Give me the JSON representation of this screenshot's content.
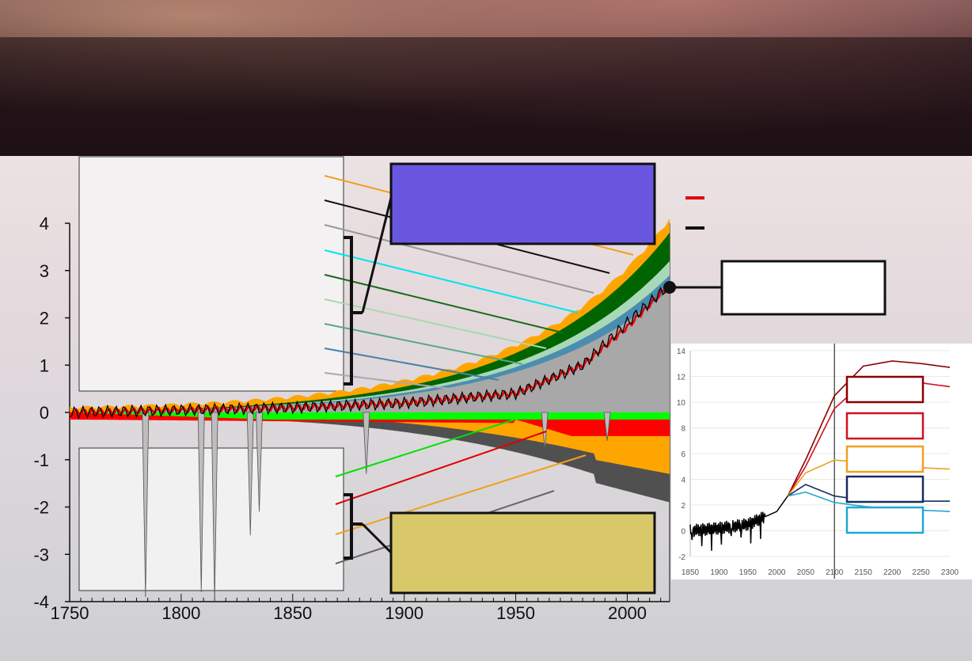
{
  "chart_data": [
    {
      "type": "area",
      "title": "",
      "xlabel": "",
      "ylabel": "",
      "xlim": [
        1750,
        2019
      ],
      "ylim": [
        -4,
        4
      ],
      "x_ticks": [
        "1750",
        "1800",
        "1850",
        "1900",
        "1950",
        "2000"
      ],
      "y_ticks": [
        "4",
        "3",
        "2",
        "1",
        "0",
        "-1",
        "-2",
        "-3",
        "-4"
      ],
      "positive_layers": [
        {
          "color": "#ffa500",
          "values_2019": 4.0
        },
        {
          "color": "#006400",
          "values_2019": 3.8
        },
        {
          "color": "#a9d8b8",
          "values_2019": 3.2
        },
        {
          "color": "#4a8db0",
          "values_2019": 2.9
        },
        {
          "color": "#a8a8a8",
          "values_2019": 2.6
        }
      ],
      "negative_layers": [
        {
          "color": "#00ff00",
          "values_2019": -0.15
        },
        {
          "color": "#ff0000",
          "values_2019": -0.5
        },
        {
          "color": "#ffa500",
          "values_2019": -1.3
        },
        {
          "color": "#505050",
          "values_2019": -1.8
        }
      ],
      "lines": [
        {
          "color": "#e00000",
          "x": [
            1750,
            1800,
            1850,
            1900,
            1950,
            1980,
            2000,
            2019
          ],
          "y": [
            0.0,
            0.05,
            0.1,
            0.2,
            0.4,
            1.0,
            1.8,
            2.7
          ]
        },
        {
          "color": "#000000",
          "x": [
            1750,
            1800,
            1850,
            1900,
            1950,
            1980,
            2000,
            2019
          ],
          "y": [
            0.0,
            0.05,
            0.1,
            0.2,
            0.4,
            1.0,
            1.9,
            2.7
          ]
        }
      ],
      "volcanic_dips": [
        {
          "x": 1784,
          "y": -3.9
        },
        {
          "x": 1809,
          "y": -3.8
        },
        {
          "x": 1815,
          "y": -4.0
        },
        {
          "x": 1831,
          "y": -2.6
        },
        {
          "x": 1835,
          "y": -2.1
        },
        {
          "x": 1883,
          "y": -1.3
        },
        {
          "x": 1963,
          "y": -0.8
        },
        {
          "x": 1991,
          "y": -0.6
        }
      ]
    },
    {
      "type": "line",
      "title": "",
      "xlim": [
        1850,
        2300
      ],
      "ylim": [
        -2,
        14
      ],
      "x_ticks": [
        "1850",
        "1900",
        "1950",
        "2000",
        "2050",
        "2100",
        "2150",
        "2200",
        "2250",
        "2300"
      ],
      "y_ticks": [
        "14",
        "12",
        "10",
        "8",
        "6",
        "4",
        "2",
        "0",
        "-2"
      ],
      "series": [
        {
          "color": "#000000",
          "x": [
            1850,
            1900,
            1950,
            2000,
            2019
          ],
          "y": [
            0.0,
            0.2,
            0.5,
            1.5,
            2.7
          ]
        },
        {
          "color": "#8b0000",
          "x": [
            2019,
            2050,
            2100,
            2150,
            2200,
            2250,
            2300
          ],
          "y": [
            2.7,
            5.5,
            10.5,
            12.8,
            13.2,
            13.0,
            12.7
          ]
        },
        {
          "color": "#d01020",
          "x": [
            2019,
            2050,
            2100,
            2150,
            2200,
            2250,
            2300
          ],
          "y": [
            2.7,
            5.0,
            9.5,
            11.5,
            11.8,
            11.5,
            11.2
          ]
        },
        {
          "color": "#f0a020",
          "x": [
            2019,
            2050,
            2100,
            2150,
            2200,
            2250,
            2300
          ],
          "y": [
            2.7,
            4.5,
            5.5,
            5.3,
            5.0,
            4.9,
            4.8
          ]
        },
        {
          "color": "#1a2a60",
          "x": [
            2019,
            2050,
            2100,
            2150,
            2200,
            2250,
            2300
          ],
          "y": [
            2.7,
            3.6,
            2.7,
            2.4,
            2.3,
            2.3,
            2.3
          ]
        },
        {
          "color": "#20a8d0",
          "x": [
            2019,
            2050,
            2100,
            2150,
            2200,
            2250,
            2300
          ],
          "y": [
            2.7,
            3.0,
            2.2,
            1.9,
            1.7,
            1.6,
            1.5
          ]
        }
      ],
      "legend_box_colors": [
        "#8b0000",
        "#d01020",
        "#f0a020",
        "#1a2a60",
        "#20a8d0"
      ]
    }
  ]
}
